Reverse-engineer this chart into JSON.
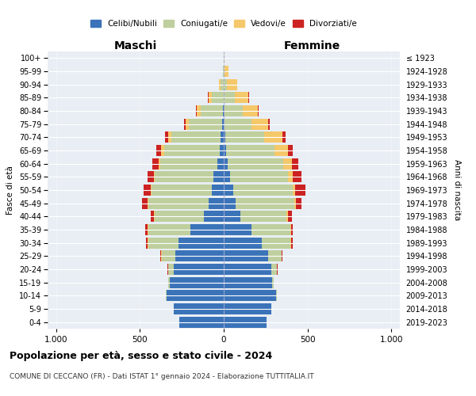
{
  "age_groups": [
    "0-4",
    "5-9",
    "10-14",
    "15-19",
    "20-24",
    "25-29",
    "30-34",
    "35-39",
    "40-44",
    "45-49",
    "50-54",
    "55-59",
    "60-64",
    "65-69",
    "70-74",
    "75-79",
    "80-84",
    "85-89",
    "90-94",
    "95-99",
    "100+"
  ],
  "anni_nascita": [
    "2019-2023",
    "2014-2018",
    "2009-2013",
    "2004-2008",
    "1999-2003",
    "1994-1998",
    "1989-1993",
    "1984-1988",
    "1979-1983",
    "1974-1978",
    "1969-1973",
    "1964-1968",
    "1959-1963",
    "1954-1958",
    "1949-1953",
    "1944-1948",
    "1939-1943",
    "1934-1938",
    "1929-1933",
    "1924-1928",
    "≤ 1923"
  ],
  "colors": {
    "celibi": "#3B73B9",
    "coniugati": "#BFCF9E",
    "vedovi": "#F5C86A",
    "divorziati": "#CC2222"
  },
  "maschi": {
    "celibi": [
      265,
      300,
      340,
      320,
      300,
      290,
      270,
      200,
      120,
      90,
      70,
      60,
      40,
      25,
      20,
      10,
      5,
      0,
      0,
      0,
      0
    ],
    "coniugati": [
      0,
      0,
      5,
      10,
      30,
      80,
      180,
      250,
      290,
      360,
      360,
      350,
      340,
      330,
      290,
      200,
      130,
      70,
      20,
      5,
      1
    ],
    "vedovi": [
      0,
      0,
      0,
      0,
      0,
      5,
      5,
      5,
      5,
      5,
      5,
      5,
      10,
      20,
      20,
      15,
      25,
      20,
      10,
      2,
      0
    ],
    "divorziati": [
      0,
      0,
      0,
      0,
      5,
      5,
      10,
      15,
      20,
      30,
      45,
      40,
      35,
      25,
      20,
      10,
      5,
      5,
      0,
      0,
      0
    ]
  },
  "femmine": {
    "celibi": [
      255,
      285,
      310,
      290,
      285,
      265,
      225,
      165,
      100,
      70,
      55,
      40,
      25,
      15,
      10,
      5,
      5,
      0,
      0,
      0,
      0
    ],
    "coniugati": [
      0,
      0,
      5,
      10,
      30,
      80,
      170,
      230,
      275,
      350,
      355,
      345,
      330,
      290,
      230,
      160,
      110,
      65,
      20,
      5,
      1
    ],
    "vedovi": [
      0,
      0,
      0,
      0,
      0,
      0,
      5,
      5,
      10,
      10,
      15,
      25,
      50,
      80,
      110,
      100,
      90,
      80,
      60,
      25,
      5
    ],
    "divorziati": [
      0,
      0,
      0,
      0,
      5,
      5,
      10,
      10,
      20,
      35,
      60,
      55,
      40,
      25,
      20,
      10,
      5,
      5,
      0,
      0,
      0
    ]
  },
  "title": "Popolazione per età, sesso e stato civile - 2024",
  "subtitle": "COMUNE DI CECCANO (FR) - Dati ISTAT 1° gennaio 2024 - Elaborazione TUTTITALIA.IT",
  "xlabel_left": "Maschi",
  "xlabel_right": "Femmine",
  "ylabel_left": "Fasce di età",
  "ylabel_right": "Anni di nascita",
  "xlim": 1050,
  "bg_color": "#FFFFFF",
  "plot_bg_color": "#E8EEF4",
  "grid_color": "#FFFFFF",
  "bar_height": 0.85
}
